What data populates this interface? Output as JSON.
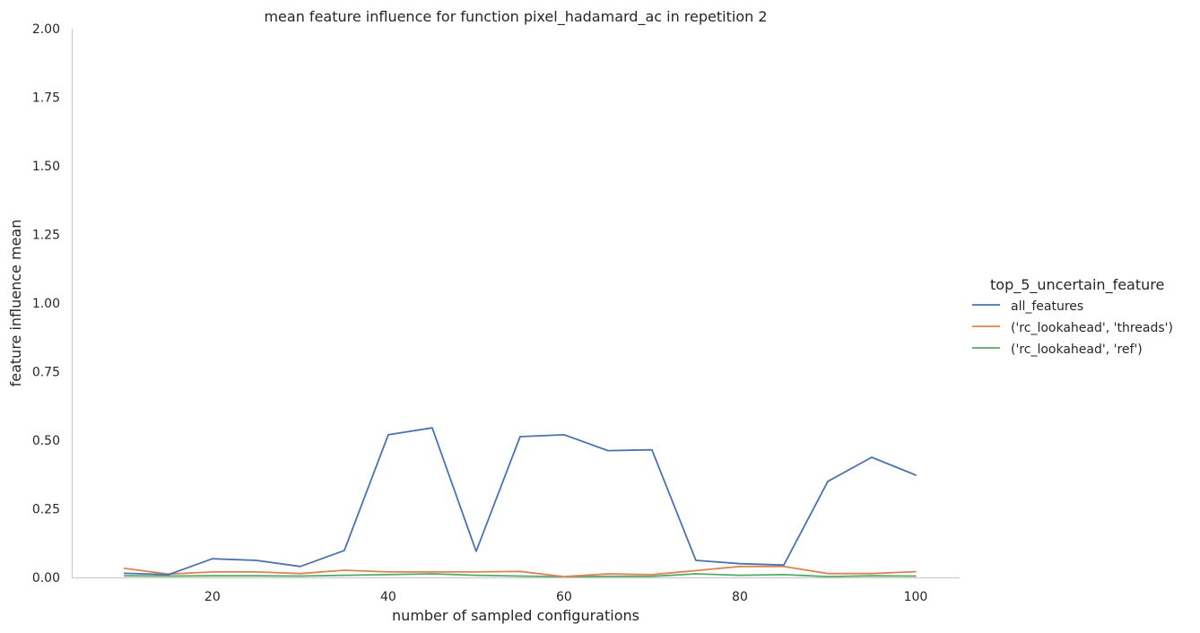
{
  "chart_data": {
    "type": "line",
    "title": "mean feature influence for function pixel_hadamard_ac in repetition 2",
    "xlabel": "number of sampled configurations",
    "ylabel": "feature influence mean",
    "xlim": [
      4,
      105
    ],
    "ylim": [
      0,
      2.0
    ],
    "xticks": [
      20,
      40,
      60,
      80,
      100
    ],
    "yticks": [
      0.0,
      0.25,
      0.5,
      0.75,
      1.0,
      1.25,
      1.5,
      1.75,
      2.0
    ],
    "ytick_labels": [
      "0.00",
      "0.25",
      "0.50",
      "0.75",
      "1.00",
      "1.25",
      "1.50",
      "1.75",
      "2.00"
    ],
    "grid": false,
    "legend_title": "top_5_uncertain_feature",
    "legend_position": "right",
    "x": [
      10,
      15,
      20,
      25,
      30,
      35,
      40,
      45,
      50,
      55,
      60,
      65,
      70,
      75,
      80,
      85,
      90,
      95,
      100
    ],
    "series": [
      {
        "name": "all_features",
        "color": "#4c72b0",
        "values": [
          0.015,
          0.01,
          0.068,
          0.062,
          0.04,
          0.098,
          0.52,
          0.545,
          0.095,
          0.513,
          0.52,
          0.462,
          0.465,
          0.062,
          0.05,
          0.045,
          0.35,
          0.438,
          0.373
        ]
      },
      {
        "name": "('rc_lookahead', 'threads')",
        "color": "#dd8452",
        "values": [
          0.033,
          0.012,
          0.02,
          0.02,
          0.014,
          0.026,
          0.02,
          0.02,
          0.02,
          0.022,
          0.003,
          0.013,
          0.01,
          0.025,
          0.04,
          0.04,
          0.014,
          0.014,
          0.021
        ]
      },
      {
        "name": "('rc_lookahead', 'ref')",
        "color": "#55a868",
        "values": [
          0.006,
          0.005,
          0.006,
          0.006,
          0.005,
          0.008,
          0.01,
          0.013,
          0.008,
          0.005,
          0.002,
          0.004,
          0.004,
          0.013,
          0.008,
          0.01,
          0.003,
          0.006,
          0.005
        ]
      }
    ]
  }
}
